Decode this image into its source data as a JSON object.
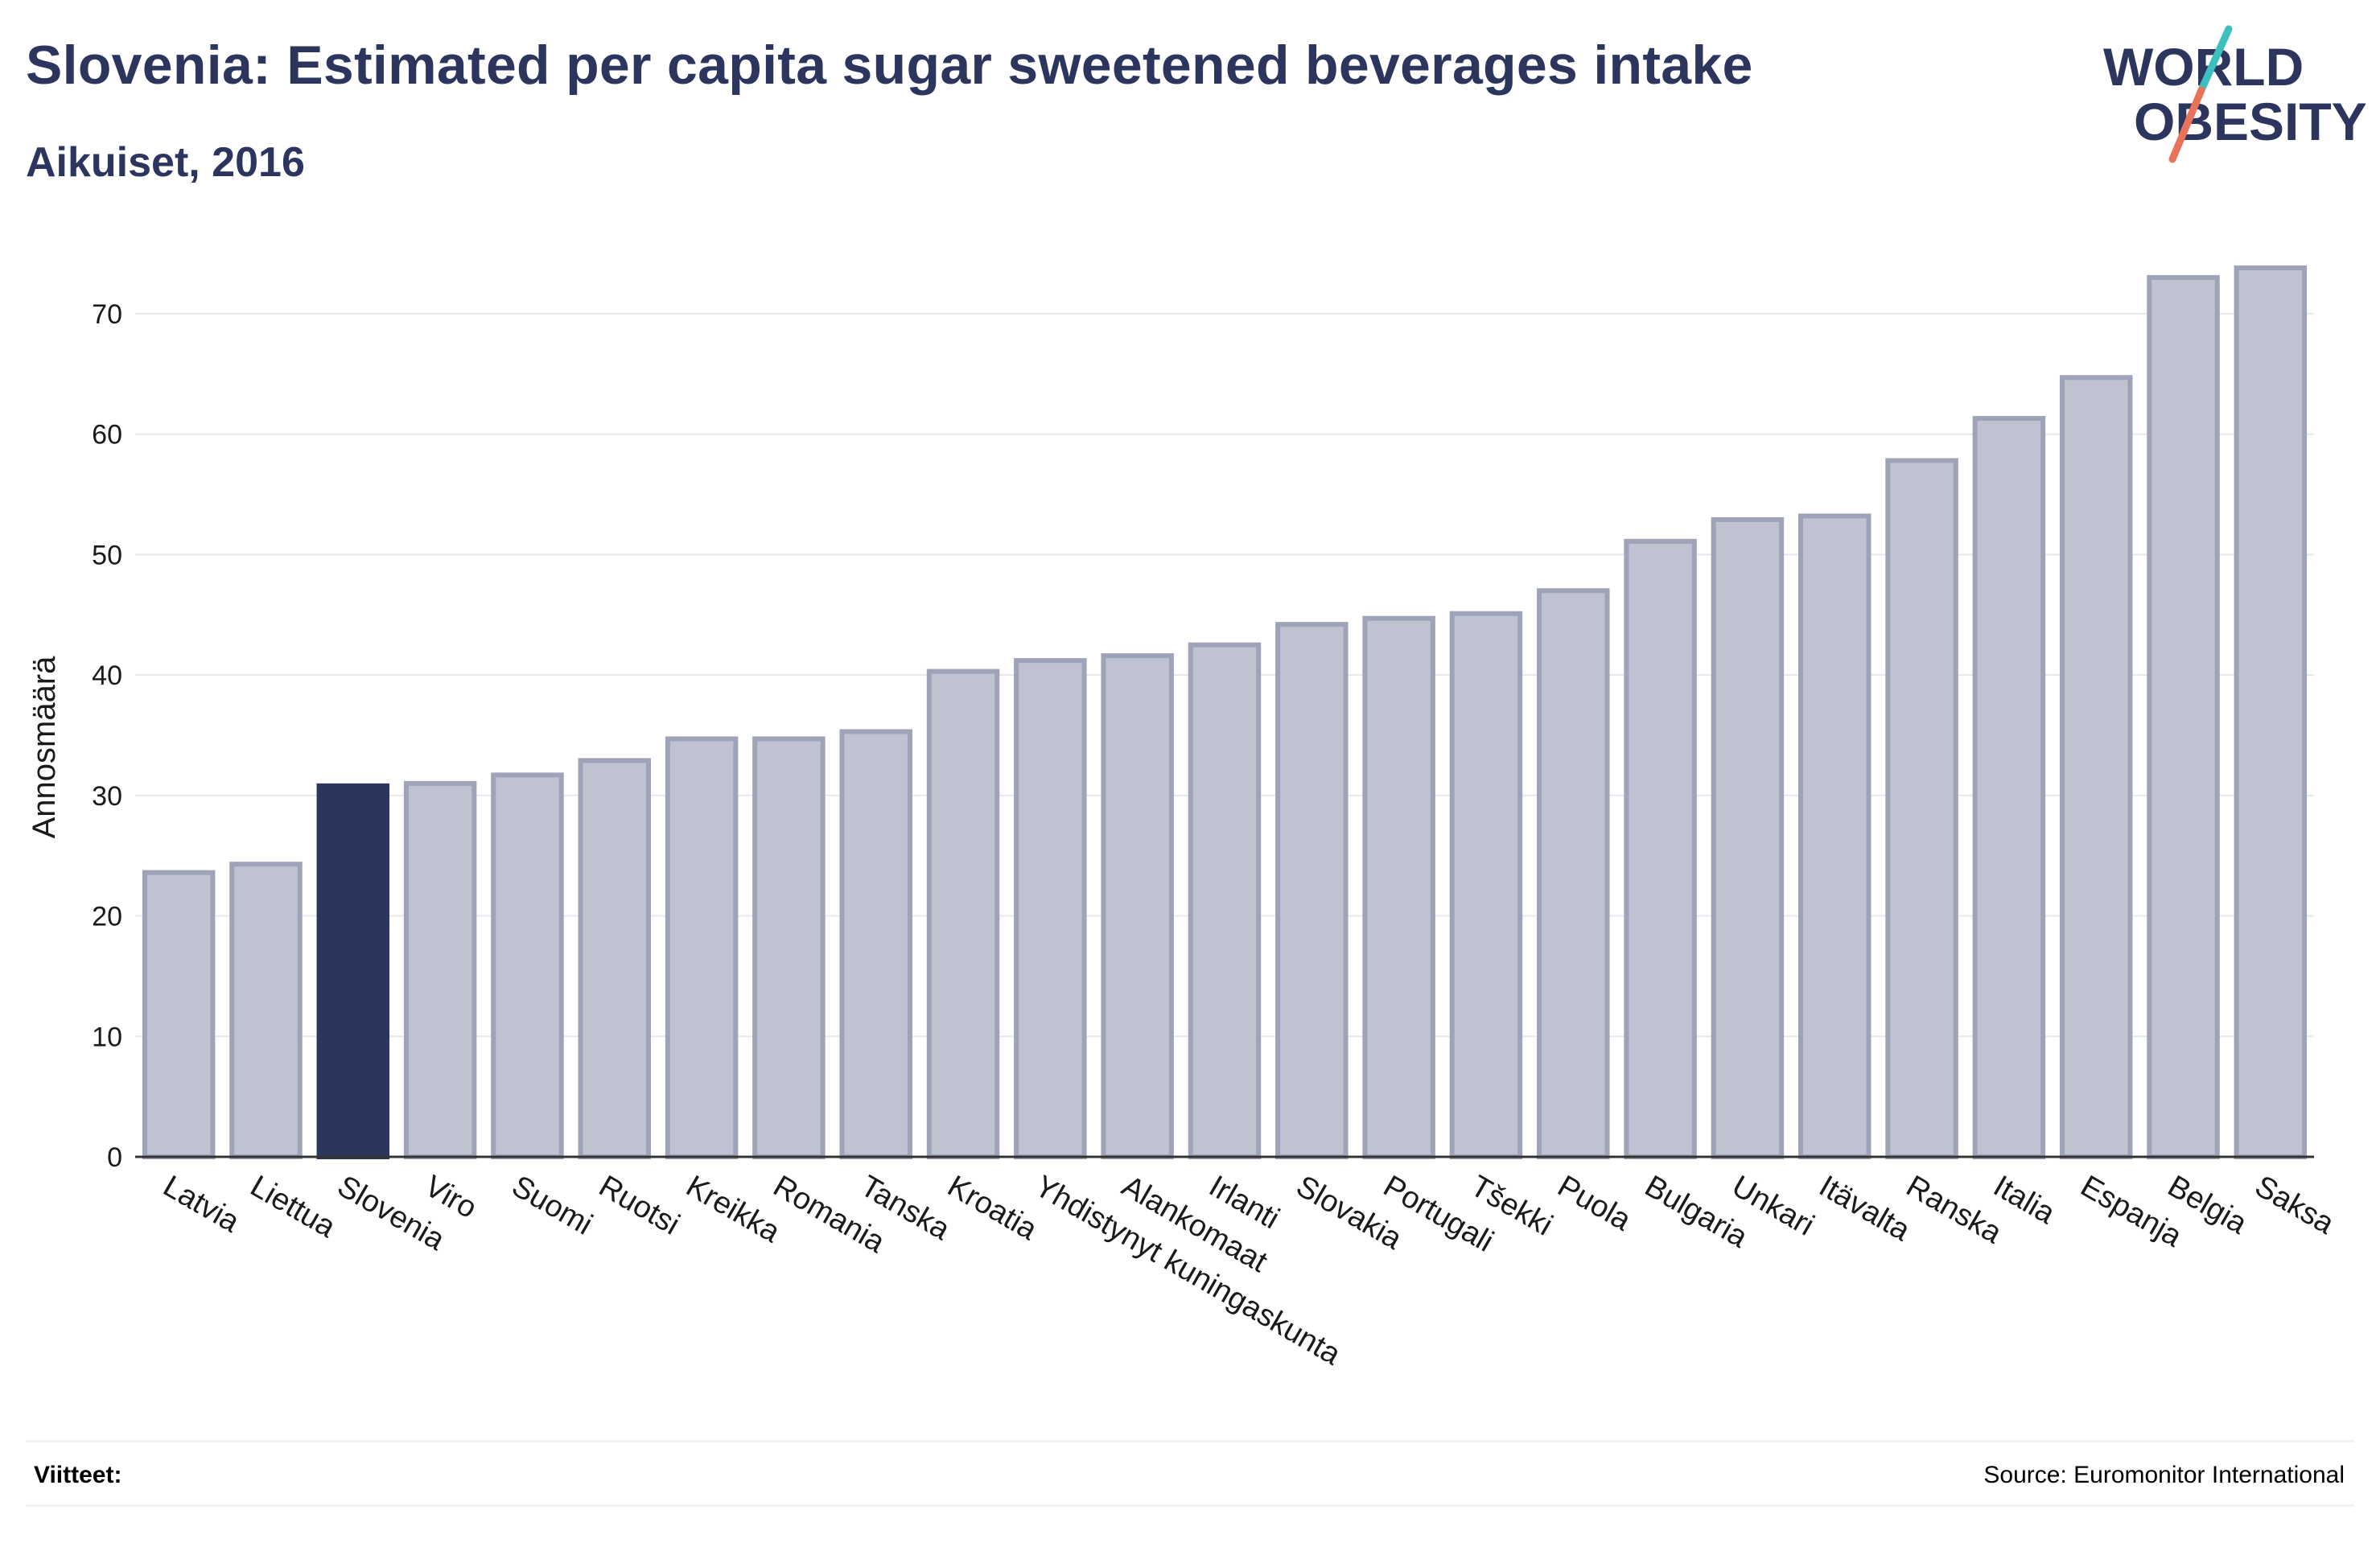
{
  "header": {
    "title": "Slovenia: Estimated per capita sugar sweetened beverages intake",
    "subtitle": "Aikuiset, 2016"
  },
  "logo": {
    "line1": "WORLD",
    "line2": "OBESITY",
    "accent_teal": "#3cbfbf",
    "accent_coral": "#e8735a"
  },
  "colors": {
    "bar_default": "#bfc2d0",
    "bar_border": "#9ea3b8",
    "bar_highlight": "#2b365f",
    "grid": "#e6e8ee",
    "axis": "#333333",
    "text": "#1a1a1a"
  },
  "chart_data": {
    "type": "bar",
    "ylabel": "Annosmäärä",
    "xlabel": "",
    "ylim": [
      0,
      76
    ],
    "yticks": [
      0,
      10,
      20,
      30,
      40,
      50,
      60,
      70
    ],
    "grid": true,
    "highlight": "Slovenia",
    "categories": [
      "Latvia",
      "Liettua",
      "Slovenia",
      "Viro",
      "Suomi",
      "Ruotsi",
      "Kreikka",
      "Romania",
      "Tanska",
      "Kroatia",
      "Yhdistynyt kuningaskunta",
      "Alankomaat",
      "Irlanti",
      "Slovakia",
      "Portugali",
      "Tšekki",
      "Puola",
      "Bulgaria",
      "Unkari",
      "Itävalta",
      "Ranska",
      "Italia",
      "Espanja",
      "Belgia",
      "Saksa"
    ],
    "values": [
      23.6,
      24.3,
      30.8,
      31.0,
      31.7,
      32.9,
      34.7,
      34.7,
      35.3,
      40.3,
      41.2,
      41.6,
      42.5,
      44.2,
      44.7,
      45.1,
      47.0,
      51.1,
      52.9,
      53.2,
      57.8,
      61.3,
      64.7,
      73.0,
      73.8
    ]
  },
  "footer": {
    "left": "Viitteet:",
    "right": "Source: Euromonitor International"
  }
}
